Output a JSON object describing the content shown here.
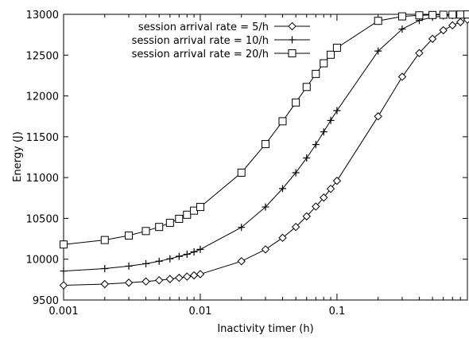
{
  "chart_data": {
    "type": "line",
    "xscale": "log",
    "xlabel": "Inactivity timer (h)",
    "ylabel": "Energy (J)",
    "xlim": [
      0.001,
      0.9
    ],
    "ylim": [
      9500,
      13000
    ],
    "x_ticks": [
      0.001,
      0.01,
      0.1
    ],
    "x_tick_labels": [
      "0.001",
      "0.01",
      "0.1"
    ],
    "y_ticks": [
      9500,
      10000,
      10500,
      11000,
      11500,
      12000,
      12500,
      13000
    ],
    "y_tick_labels": [
      "9500",
      "10000",
      "10500",
      "11000",
      "11500",
      "12000",
      "12500",
      "13000"
    ],
    "grid": false,
    "legend": "top-left",
    "series": [
      {
        "name": "session arrival rate = 5/h",
        "marker": "diamond",
        "x": [
          0.001,
          0.002,
          0.003,
          0.004,
          0.005,
          0.006,
          0.007,
          0.008,
          0.009,
          0.01,
          0.02,
          0.03,
          0.04,
          0.05,
          0.06,
          0.07,
          0.08,
          0.09,
          0.1,
          0.2,
          0.3,
          0.4,
          0.5,
          0.6,
          0.7,
          0.8,
          0.9
        ],
        "values": [
          9680,
          9695,
          9712,
          9727,
          9742,
          9757,
          9772,
          9787,
          9802,
          9817,
          9975,
          10120,
          10262,
          10395,
          10525,
          10645,
          10755,
          10862,
          10960,
          11750,
          12235,
          12525,
          12700,
          12805,
          12865,
          12905,
          12935
        ]
      },
      {
        "name": "session arrival rate = 10/h",
        "marker": "plus",
        "x": [
          0.001,
          0.002,
          0.003,
          0.004,
          0.005,
          0.006,
          0.007,
          0.008,
          0.009,
          0.01,
          0.02,
          0.03,
          0.04,
          0.05,
          0.06,
          0.07,
          0.08,
          0.09,
          0.1,
          0.2,
          0.3,
          0.4,
          0.5,
          0.6,
          0.7,
          0.8,
          0.9
        ],
        "values": [
          9855,
          9885,
          9915,
          9945,
          9975,
          10005,
          10035,
          10060,
          10090,
          10120,
          10390,
          10640,
          10865,
          11060,
          11240,
          11405,
          11560,
          11700,
          11820,
          12550,
          12820,
          12925,
          12965,
          12980,
          12985,
          12990,
          12993
        ]
      },
      {
        "name": "session arrival rate = 20/h",
        "marker": "square",
        "x": [
          0.001,
          0.002,
          0.003,
          0.004,
          0.005,
          0.006,
          0.007,
          0.008,
          0.009,
          0.01,
          0.02,
          0.03,
          0.04,
          0.05,
          0.06,
          0.07,
          0.08,
          0.09,
          0.1,
          0.2,
          0.3,
          0.4,
          0.5,
          0.6,
          0.7,
          0.8,
          0.9
        ],
        "values": [
          10180,
          10235,
          10290,
          10345,
          10395,
          10445,
          10495,
          10545,
          10595,
          10640,
          11060,
          11410,
          11690,
          11920,
          12110,
          12270,
          12400,
          12505,
          12590,
          12920,
          12975,
          12988,
          12992,
          12995,
          12996,
          12997,
          12998
        ]
      }
    ]
  }
}
